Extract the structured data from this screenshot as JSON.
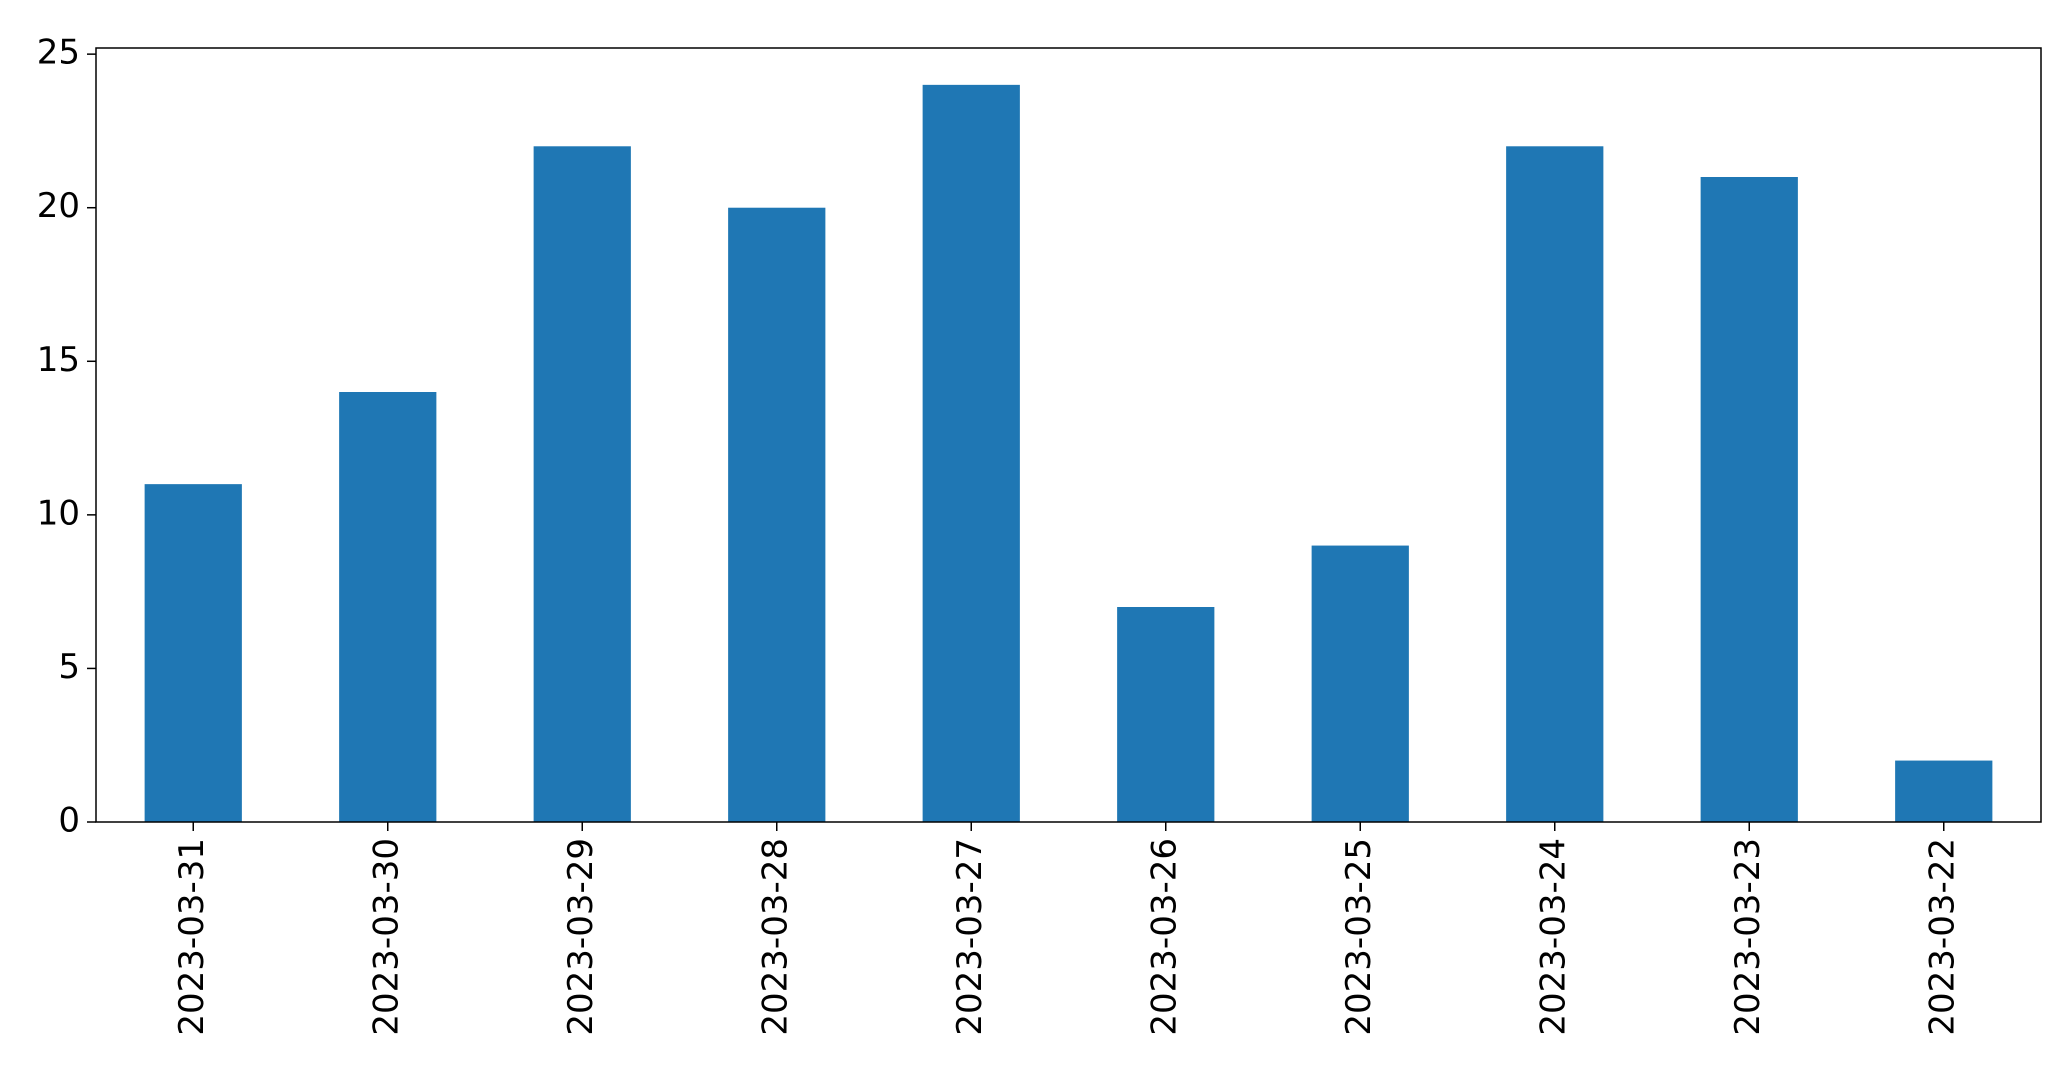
{
  "chart_data": {
    "type": "bar",
    "categories": [
      "2023-03-31",
      "2023-03-30",
      "2023-03-29",
      "2023-03-28",
      "2023-03-27",
      "2023-03-26",
      "2023-03-25",
      "2023-03-24",
      "2023-03-23",
      "2023-03-22"
    ],
    "values": [
      11,
      14,
      22,
      20,
      24,
      7,
      9,
      22,
      21,
      2
    ],
    "color": "#1f77b4",
    "ylim": [
      0,
      25.2
    ],
    "yticks": [
      0,
      5,
      10,
      15,
      20,
      25
    ],
    "grid": false
  }
}
